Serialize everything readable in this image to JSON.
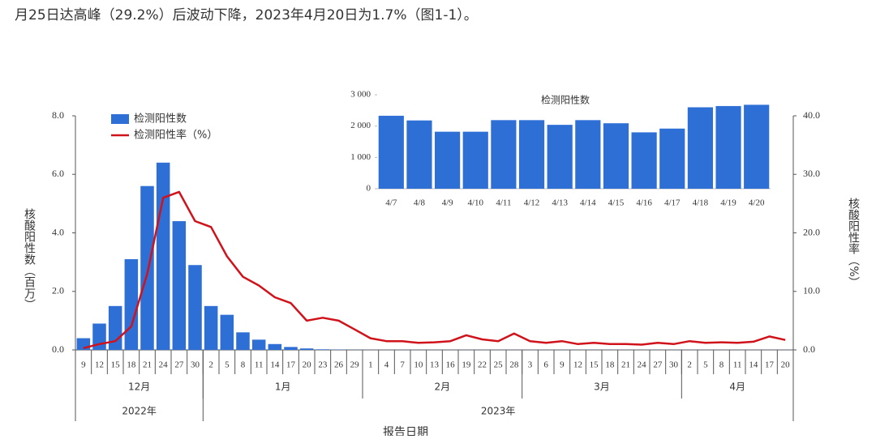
{
  "header_text": "月25日达高峰（29.2%）后波动下降，2023年4月20日为1.7%（图1-1）。",
  "chart_data": [
    {
      "type": "combo",
      "x_label": "报告日期",
      "y_label": "核酸阳性数（百万）",
      "y2_label": "核酸阳性率（%）",
      "categories": [
        "9",
        "12",
        "15",
        "18",
        "21",
        "24",
        "27",
        "30",
        "2",
        "5",
        "8",
        "11",
        "14",
        "17",
        "20",
        "23",
        "26",
        "29",
        "1",
        "4",
        "7",
        "10",
        "13",
        "16",
        "19",
        "22",
        "25",
        "28",
        "3",
        "6",
        "9",
        "12",
        "15",
        "18",
        "21",
        "24",
        "27",
        "30",
        "2",
        "5",
        "8",
        "11",
        "14",
        "17",
        "20"
      ],
      "months": [
        "12月",
        "1月",
        "2月",
        "3月",
        "4月"
      ],
      "years": [
        "2022年",
        "2023年"
      ],
      "series": [
        {
          "name": "检测阳性数",
          "type": "bar",
          "color": "#2e6fd6",
          "values": [
            0.4,
            0.9,
            1.5,
            3.1,
            5.6,
            6.4,
            4.4,
            2.9,
            1.5,
            1.2,
            0.6,
            0.35,
            0.2,
            0.1,
            0.05,
            0.02,
            0.01,
            0.005,
            0.003,
            0.003,
            0.003,
            0.003,
            0.003,
            0.003,
            0.003,
            0.003,
            0.003,
            0.003,
            0.003,
            0.003,
            0.003,
            0.003,
            0.003,
            0.003,
            0.003,
            0.003,
            0.003,
            0.003,
            0.003,
            0.003,
            0.003,
            0.003,
            0.003,
            0.003,
            0.003
          ]
        },
        {
          "name": "检测阳性率（%）",
          "type": "line",
          "color": "#d0121b",
          "axis": "y2",
          "values": [
            0.3,
            1.0,
            1.5,
            4.0,
            13,
            26,
            27,
            22,
            21,
            16,
            12.5,
            11,
            9,
            8,
            5,
            5.5,
            5,
            3.5,
            2,
            1.5,
            1.5,
            1.2,
            1.3,
            1.5,
            2.5,
            1.8,
            1.5,
            2.8,
            1.5,
            1.2,
            1.5,
            1.0,
            1.2,
            1.0,
            1.0,
            0.9,
            1.2,
            1.0,
            1.5,
            1.2,
            1.3,
            1.2,
            1.4,
            2.3,
            1.7
          ]
        }
      ],
      "ylim": [
        0,
        8
      ],
      "yticks": [
        {
          "value": 0,
          "label": "0.0"
        },
        {
          "value": 2,
          "label": "2.0"
        },
        {
          "value": 4,
          "label": "4.0"
        },
        {
          "value": 6,
          "label": "6.0"
        },
        {
          "value": 8,
          "label": "8.0"
        }
      ],
      "y2lim": [
        0,
        40
      ],
      "y2ticks": [
        {
          "value": 0,
          "label": "0.0"
        },
        {
          "value": 10,
          "label": "10.0"
        },
        {
          "value": 20,
          "label": "20.0"
        },
        {
          "value": 30,
          "label": "30.0"
        },
        {
          "value": 40,
          "label": "40.0"
        }
      ],
      "legend": "upper left"
    },
    {
      "type": "bar",
      "title": "检测阳性数",
      "categories": [
        "4/7",
        "4/8",
        "4/9",
        "4/10",
        "4/11",
        "4/12",
        "4/13",
        "4/14",
        "4/15",
        "4/16",
        "4/17",
        "4/18",
        "4/19",
        "4/20"
      ],
      "values": [
        2330,
        2180,
        1820,
        1820,
        2190,
        2190,
        2040,
        2190,
        2090,
        1800,
        1920,
        2600,
        2640,
        2680
      ],
      "color": "#2e6fd6",
      "ylim": [
        0,
        3000
      ],
      "yticks": [
        0,
        {
          "value": 1000,
          "label": "1 000"
        },
        {
          "value": 2000,
          "label": "2 000"
        },
        {
          "value": 3000,
          "label": "3 000"
        }
      ]
    }
  ]
}
